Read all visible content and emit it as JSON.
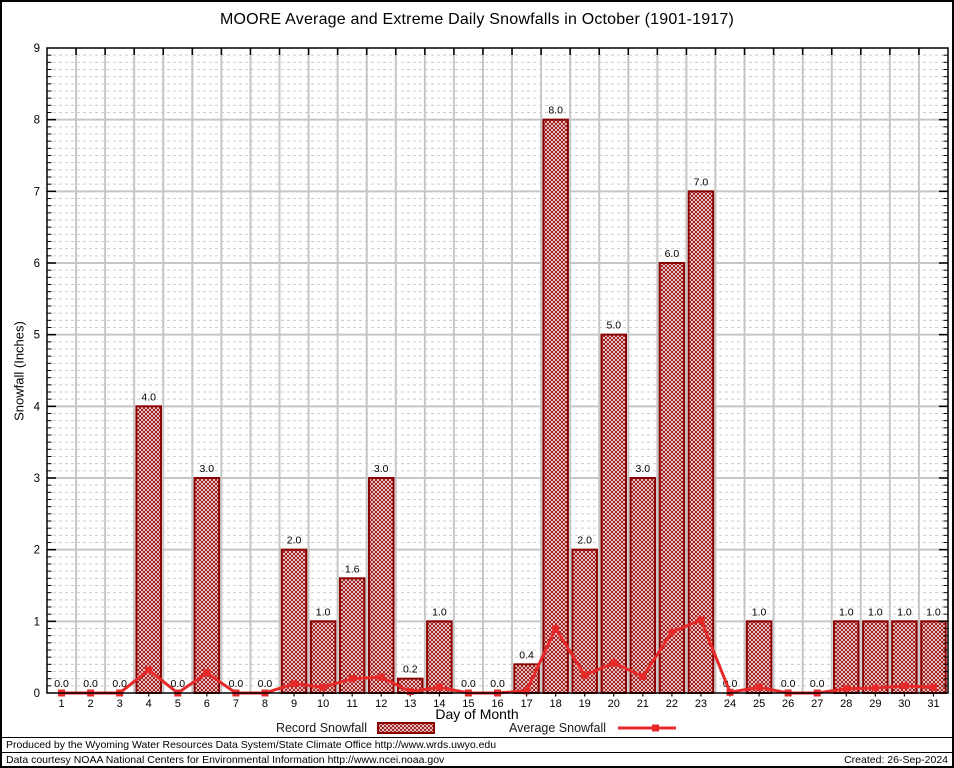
{
  "title": "MOORE Average and Extreme Daily Snowfalls in October (1901-1917)",
  "y_axis_title": "Snowfall (Inches)",
  "x_axis_title": "Day of Month",
  "legend": {
    "record_label": "Record Snowfall",
    "average_label": "Average Snowfall"
  },
  "footer": {
    "line1": "Produced by the Wyoming Water Resources Data System/State Climate Office http://www.wrds.uwyo.edu",
    "line2": "Data courtesy NOAA National Centers for Environmental Information http://www.ncei.noaa.gov",
    "created": "Created: 26-Sep-2024"
  },
  "colors": {
    "bar_outline": "#8b0000",
    "bar_hatch": "#9b1010",
    "line": "#e62a2a",
    "grid_major": "#c6c6c6",
    "grid_minor": "#cccccc",
    "axis": "#000000"
  },
  "chart_data": {
    "type": "bar",
    "title": "MOORE Average and Extreme Daily Snowfalls in October (1901-1917)",
    "xlabel": "Day of Month",
    "ylabel": "Snowfall (Inches)",
    "x": [
      1,
      2,
      3,
      4,
      5,
      6,
      7,
      8,
      9,
      10,
      11,
      12,
      13,
      14,
      15,
      16,
      17,
      18,
      19,
      20,
      21,
      22,
      23,
      24,
      25,
      26,
      27,
      28,
      29,
      30,
      31
    ],
    "ylim": [
      0,
      9
    ],
    "yticks": [
      0,
      1,
      2,
      3,
      4,
      5,
      6,
      7,
      8,
      9
    ],
    "grid": "on",
    "legend_position": "bottom",
    "series": [
      {
        "name": "Record Snowfall",
        "type": "bar",
        "values": [
          0.0,
          0.0,
          0.0,
          4.0,
          0.0,
          3.0,
          0.0,
          0.0,
          2.0,
          1.0,
          1.6,
          3.0,
          0.2,
          1.0,
          0.0,
          0.0,
          0.4,
          8.0,
          2.0,
          5.0,
          3.0,
          6.0,
          7.0,
          0.0,
          1.0,
          0.0,
          0.0,
          1.0,
          1.0,
          1.0,
          1.0
        ],
        "value_labels": [
          "0.0",
          "0.0",
          "0.0",
          "4.0",
          "0.0",
          "3.0",
          "0.0",
          "0.0",
          "2.0",
          "1.0",
          "1.6",
          "3.0",
          "0.2",
          "1.0",
          "0.0",
          "0.0",
          "0.4",
          "8.0",
          "2.0",
          "5.0",
          "3.0",
          "6.0",
          "7.0",
          "0.0",
          "1.0",
          "0.0",
          "0.0",
          "1.0",
          "1.0",
          "1.0",
          "1.0"
        ]
      },
      {
        "name": "Average Snowfall",
        "type": "line",
        "values": [
          0,
          0,
          0,
          0.32,
          0,
          0.28,
          0,
          0,
          0.13,
          0.08,
          0.2,
          0.22,
          0.02,
          0.08,
          0,
          0,
          0.03,
          0.9,
          0.25,
          0.42,
          0.23,
          0.85,
          1.02,
          0.01,
          0.08,
          0,
          0,
          0.06,
          0.07,
          0.1,
          0.08
        ]
      }
    ]
  }
}
